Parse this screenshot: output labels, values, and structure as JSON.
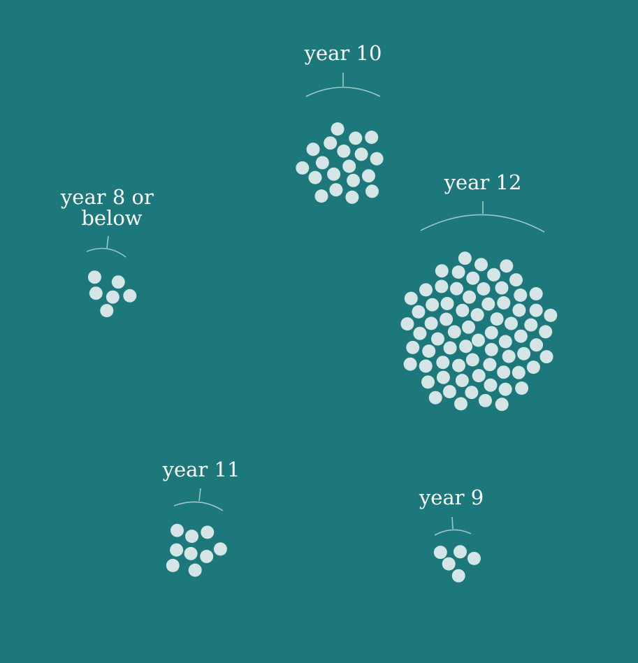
{
  "chart_data": {
    "type": "bubble-cluster",
    "title": "",
    "background_color": "#1d787b",
    "dot_color": "#d5e5e5",
    "bracket_color": "#9fc7c7",
    "label_color": "#ffffff",
    "groups": [
      {
        "name": "year 10",
        "label_lines": [
          "year 10"
        ],
        "count": 19
      },
      {
        "name": "year 8 or below",
        "label_lines": [
          "year 8 or",
          "below"
        ],
        "count": 6
      },
      {
        "name": "year 12",
        "label_lines": [
          "year 12"
        ],
        "count": 73
      },
      {
        "name": "year 11",
        "label_lines": [
          "year 11"
        ],
        "count": 9
      },
      {
        "name": "year 9",
        "label_lines": [
          "year 9"
        ],
        "count": 5
      }
    ]
  }
}
